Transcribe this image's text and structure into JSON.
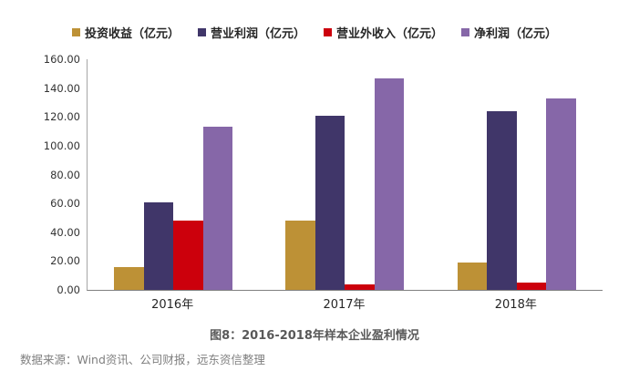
{
  "chart_data": {
    "type": "bar",
    "title": "图8：2016-2018年样本企业盈利情况",
    "source_note": "数据来源：Wind资讯、公司财报，远东资信整理",
    "categories": [
      "2016年",
      "2017年",
      "2018年"
    ],
    "series": [
      {
        "name": "投资收益（亿元）",
        "color": "#bd9136",
        "values": [
          16,
          48,
          19
        ]
      },
      {
        "name": "营业利润（亿元）",
        "color": "#403669",
        "values": [
          61,
          121,
          124
        ]
      },
      {
        "name": "营业外收入（亿元）",
        "color": "#cc000c",
        "values": [
          48,
          4,
          5
        ]
      },
      {
        "name": "净利润（亿元）",
        "color": "#8667a8",
        "values": [
          113,
          147,
          133
        ]
      }
    ],
    "ylim": [
      0,
      160
    ],
    "ytick_step": 20,
    "ytick_labels": [
      "160.00",
      "140.00",
      "120.00",
      "100.00",
      "80.00",
      "60.00",
      "40.00",
      "20.00",
      "0.00"
    ],
    "grid": false,
    "legend_position": "top",
    "axis_color": "#808080"
  }
}
